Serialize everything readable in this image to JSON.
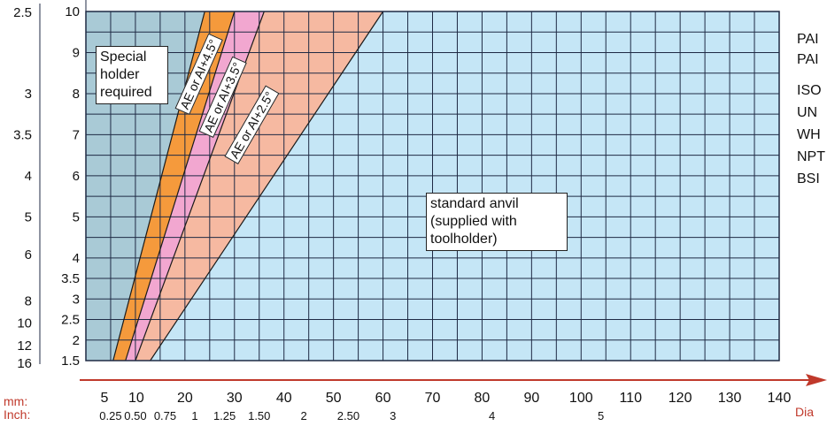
{
  "chart_data": {
    "type": "area",
    "xlabel": "Dia",
    "x_units": [
      "mm:",
      "Inch:"
    ],
    "x_mm_ticks": [
      "5",
      "10",
      "20",
      "30",
      "40",
      "50",
      "60",
      "70",
      "80",
      "90",
      "100",
      "110",
      "120",
      "130",
      "140"
    ],
    "x_inch_ticks": [
      "0.25",
      "0.50",
      "0.75",
      "1",
      "1.25",
      "1.50",
      "2",
      "2.50",
      "3",
      "4",
      "5"
    ],
    "x_inch_tick_positions_mm": [
      5,
      10,
      16,
      22,
      28,
      35,
      44,
      53,
      62,
      82,
      104
    ],
    "xlim": [
      0,
      140
    ],
    "y_tpi_ticks": [
      "10",
      "9",
      "8",
      "7",
      "6",
      "5",
      "4",
      "3.5",
      "3",
      "2.5",
      "2",
      "1.5"
    ],
    "y_pitch_ticks": [
      "2.5",
      "3",
      "3.5",
      "4",
      "5",
      "6",
      "8",
      "10",
      "12",
      "16"
    ],
    "zones": [
      {
        "name": "Special holder required",
        "color": "#a9cad6",
        "boundary": [
          [
            0,
            10
          ],
          [
            3.5,
            1.5
          ]
        ]
      },
      {
        "name": "AE or AI+4.5°",
        "color": "#f59a3c",
        "lower": [
          [
            5.5,
            1.5
          ],
          [
            24,
            10
          ]
        ],
        "upper": [
          [
            8,
            1.5
          ],
          [
            30,
            10
          ]
        ]
      },
      {
        "name": "AE or AI+3.5°",
        "color": "#f2a7d0",
        "lower": [
          [
            8,
            1.5
          ],
          [
            30,
            10
          ]
        ],
        "upper": [
          [
            10,
            1.5
          ],
          [
            36,
            10
          ]
        ]
      },
      {
        "name": "AE or AI+2.5°",
        "color": "#f6b9a1",
        "lower": [
          [
            10,
            1.5
          ],
          [
            36,
            10
          ]
        ],
        "upper": [
          [
            13,
            1.5
          ],
          [
            60,
            10
          ]
        ]
      },
      {
        "name": "standard anvil\n(supplied with\ntoolholder)",
        "color": "#c5e6f6",
        "lower": [
          [
            13,
            1.5
          ],
          [
            60,
            10
          ]
        ]
      }
    ],
    "legend": [
      "PAI",
      "PAI",
      "ISO",
      "UN",
      "WH",
      "NPT",
      "BSI"
    ],
    "grid": true,
    "legend_placement": "right"
  }
}
